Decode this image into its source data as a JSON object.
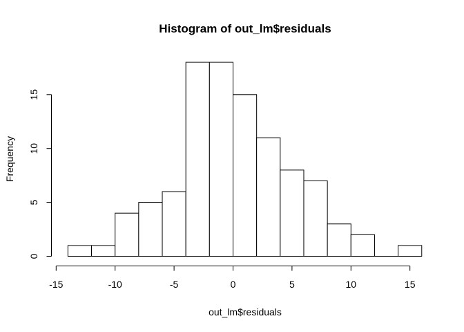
{
  "chart_data": {
    "type": "bar",
    "subtype": "histogram",
    "title": "Histogram of out_lm$residuals",
    "xlabel": "out_lm$residuals",
    "ylabel": "Frequency",
    "bins": [
      {
        "start": -14,
        "end": -12,
        "count": 1
      },
      {
        "start": -12,
        "end": -10,
        "count": 1
      },
      {
        "start": -10,
        "end": -8,
        "count": 4
      },
      {
        "start": -8,
        "end": -6,
        "count": 5
      },
      {
        "start": -6,
        "end": -4,
        "count": 6
      },
      {
        "start": -4,
        "end": -2,
        "count": 18
      },
      {
        "start": -2,
        "end": 0,
        "count": 18
      },
      {
        "start": 0,
        "end": 2,
        "count": 15
      },
      {
        "start": 2,
        "end": 4,
        "count": 11
      },
      {
        "start": 4,
        "end": 6,
        "count": 8
      },
      {
        "start": 6,
        "end": 8,
        "count": 7
      },
      {
        "start": 8,
        "end": 10,
        "count": 3
      },
      {
        "start": 10,
        "end": 12,
        "count": 2
      },
      {
        "start": 12,
        "end": 14,
        "count": 0
      },
      {
        "start": 14,
        "end": 16,
        "count": 1
      }
    ],
    "xticks": [
      -15,
      -10,
      -5,
      0,
      5,
      10,
      15
    ],
    "xtick_labels": [
      "-15",
      "-10",
      "-5",
      "0",
      "5",
      "10",
      "15"
    ],
    "yticks": [
      0,
      5,
      10,
      15
    ],
    "ytick_labels": [
      "0",
      "5",
      "10",
      "15"
    ],
    "xlim": [
      -15,
      16
    ],
    "ylim": [
      0,
      18
    ],
    "grid": false,
    "colors": {
      "bar_fill": "#ffffff",
      "bar_stroke": "#000000"
    }
  }
}
